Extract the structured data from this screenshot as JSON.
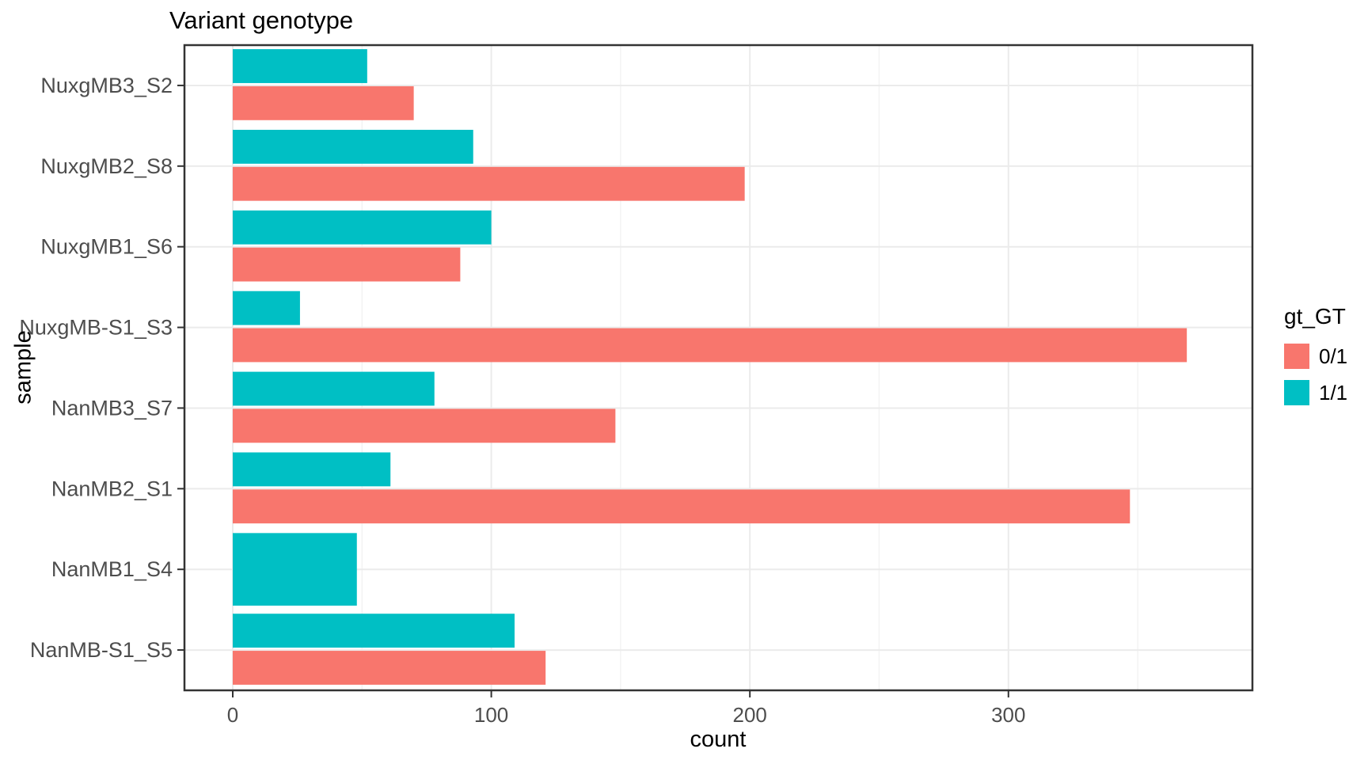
{
  "chart_data": {
    "type": "bar",
    "orientation": "horizontal",
    "title": "Variant genotype",
    "xlabel": "count",
    "ylabel": "sample",
    "legend_title": "gt_GT",
    "legend_position": "right",
    "grid": true,
    "categories": [
      "NuxgMB3_S2",
      "NuxgMB2_S8",
      "NuxgMB1_S6",
      "NuxgMB-S1_S3",
      "NanMB3_S7",
      "NanMB2_S1",
      "NanMB1_S4",
      "NanMB-S1_S5"
    ],
    "series": [
      {
        "name": "0/1",
        "color": "#F8766D",
        "values": [
          70,
          198,
          88,
          369,
          148,
          347,
          null,
          121
        ]
      },
      {
        "name": "1/1",
        "color": "#00BFC4",
        "values": [
          52,
          93,
          100,
          26,
          78,
          61,
          48,
          109
        ]
      }
    ],
    "x_ticks": [
      0,
      100,
      200,
      300
    ],
    "xlim": [
      -19,
      394
    ],
    "colors": {
      "panel_border": "#333333",
      "grid_major": "#EBEBEB",
      "grid_minor": "#F3F3F3",
      "axis_text": "#4D4D4D",
      "tick_mark": "#333333",
      "background": "#FFFFFF"
    }
  }
}
